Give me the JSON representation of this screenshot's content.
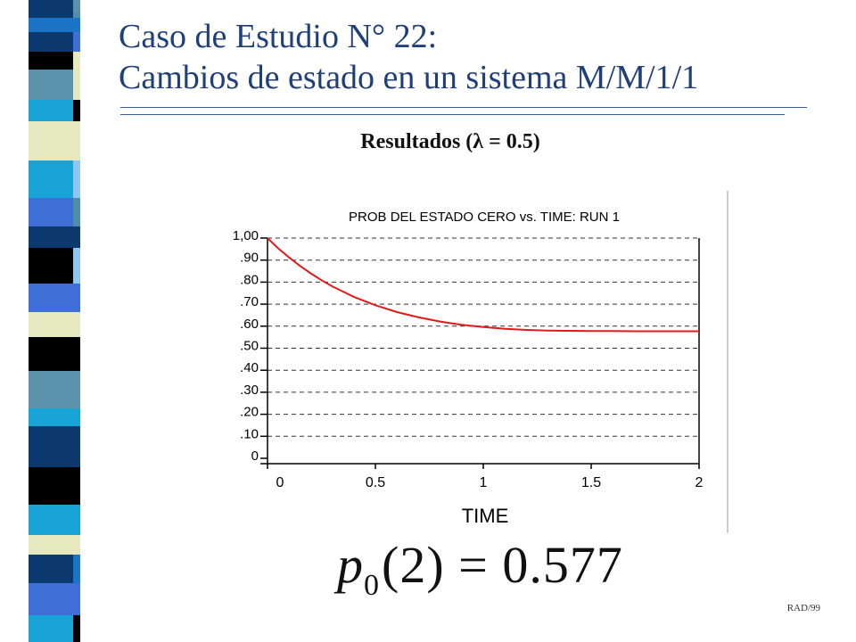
{
  "slide": {
    "title_line1": "Caso de Estudio N° 22:",
    "title_line2": "Cambios de estado en un sistema M/M/1/1",
    "results_heading": "Resultados (λ = 0.5)",
    "formula": {
      "variable": "p",
      "subscript": "0",
      "argument": "(2)",
      "equals": "=",
      "value": "0.577"
    },
    "footer": "RAD/99"
  },
  "strip_colors": [
    "#0d3a6e",
    "#1b74c6",
    "#3f6fd6",
    "#000000",
    "#e6e8bf",
    "#5b93ad",
    "#18a4d6",
    "#8fc6f3",
    "#4f8fa5",
    "#ffffff"
  ],
  "chart_data": {
    "type": "line",
    "title": "PROB DEL ESTADO CERO vs. TIME: RUN 1",
    "xlabel": "TIME",
    "ylabel": "",
    "xlim": [
      0,
      2
    ],
    "ylim": [
      0,
      1.0
    ],
    "x_ticks": [
      "0",
      "0.5",
      "1",
      "1.5",
      "2"
    ],
    "x_tick_values": [
      0,
      0.5,
      1,
      1.5,
      2
    ],
    "y_ticks": [
      "1,00",
      ".90",
      ".80",
      ".70",
      ".60",
      ".50",
      ".40",
      ".30",
      ".20",
      ".10",
      "0"
    ],
    "y_tick_values": [
      1.0,
      0.9,
      0.8,
      0.7,
      0.6,
      0.5,
      0.4,
      0.3,
      0.2,
      0.1,
      0
    ],
    "grid": "horizontal dashed",
    "line_color": "#e01a1a",
    "series": [
      {
        "x": [
          0,
          0.05,
          0.1,
          0.15,
          0.2,
          0.25,
          0.3,
          0.4,
          0.5,
          0.6,
          0.7,
          0.8,
          0.9,
          1.0,
          1.1,
          1.2,
          1.3,
          1.4,
          1.5,
          1.6,
          1.7,
          1.8,
          1.9,
          2.0
        ],
        "values": [
          1.0,
          0.953,
          0.912,
          0.874,
          0.84,
          0.809,
          0.781,
          0.733,
          0.695,
          0.664,
          0.64,
          0.621,
          0.606,
          0.596,
          0.588,
          0.583,
          0.58,
          0.579,
          0.578,
          0.578,
          0.577,
          0.577,
          0.577,
          0.577
        ]
      }
    ]
  }
}
